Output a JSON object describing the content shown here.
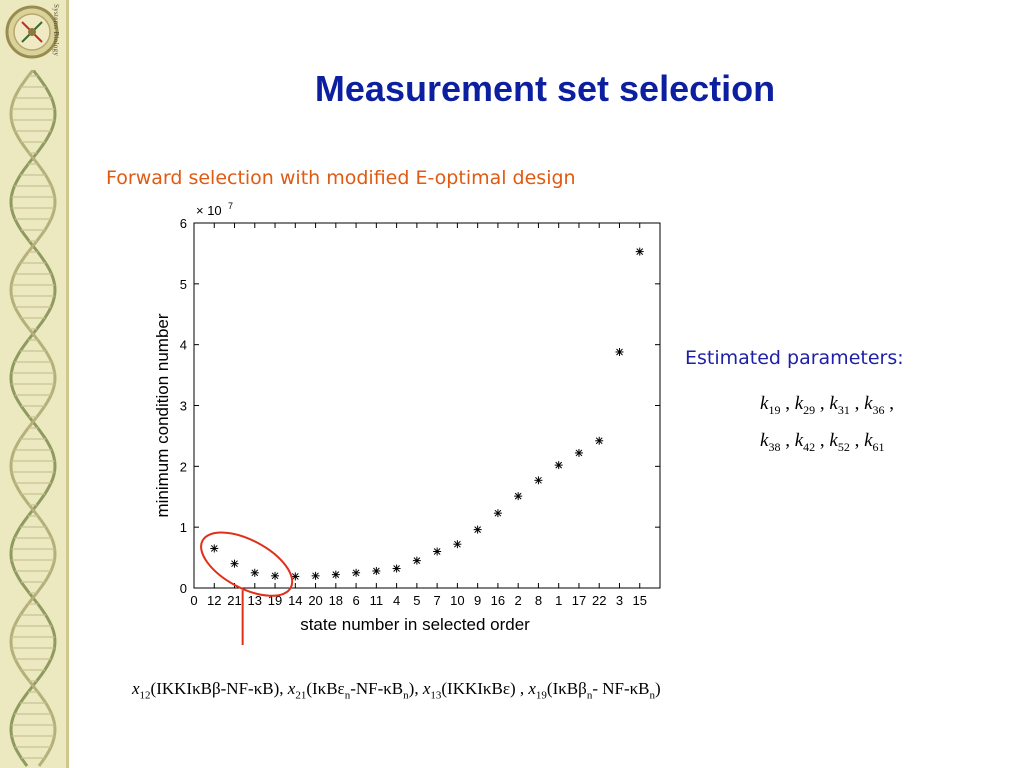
{
  "sidebar": {
    "logo_text": "Systems Biology"
  },
  "slide": {
    "title": "Measurement set selection",
    "subtitle": "Forward selection with modified E-optimal design",
    "params_label": "Estimated parameters:",
    "params": [
      [
        {
          "v": "k",
          "s": "19"
        },
        {
          "v": "k",
          "s": "29"
        },
        {
          "v": "k",
          "s": "31"
        },
        {
          "v": "k",
          "s": "36"
        }
      ],
      [
        {
          "v": "k",
          "s": "38"
        },
        {
          "v": "k",
          "s": "42"
        },
        {
          "v": "k",
          "s": "52"
        },
        {
          "v": "k",
          "s": "61"
        }
      ]
    ],
    "params_line_1_trailing": ",",
    "states_caption": [
      {
        "v": "x",
        "s": "12",
        "t": "(IKKIκBβ-NF-κB), "
      },
      {
        "v": "x",
        "s": "21",
        "t": "(IκBε",
        "s2": "n",
        "t2": "-NF-κB",
        "s3": "n",
        "t3": "), "
      },
      {
        "v": "x",
        "s": "13",
        "t": "(IKKIκBε) , "
      },
      {
        "v": "x",
        "s": "19",
        "t": "(IκBβ",
        "s2": "n",
        "t2": "- NF-κB",
        "s3": "n",
        "t3": ")"
      }
    ]
  },
  "colors": {
    "title": "#0b1fa0",
    "subtitle": "#e05a12",
    "params_label": "#1d1fa8",
    "ellipse": "#e0301a",
    "sidebar_bg": "#ece8bf"
  },
  "chart_data": {
    "type": "scatter",
    "marker": "asterisk",
    "xlabel": "state number in selected order",
    "ylabel": "minimum condition number",
    "y_multiplier": "× 10",
    "y_multiplier_exp": "7",
    "categories": [
      "0",
      "12",
      "21",
      "13",
      "19",
      "14",
      "20",
      "18",
      "6",
      "11",
      "4",
      "5",
      "7",
      "10",
      "9",
      "16",
      "2",
      "8",
      "1",
      "17",
      "22",
      "3",
      "15"
    ],
    "points": [
      {
        "x": 1,
        "y": 0.65
      },
      {
        "x": 2,
        "y": 0.4
      },
      {
        "x": 3,
        "y": 0.25
      },
      {
        "x": 4,
        "y": 0.2
      },
      {
        "x": 5,
        "y": 0.19
      },
      {
        "x": 6,
        "y": 0.2
      },
      {
        "x": 7,
        "y": 0.22
      },
      {
        "x": 8,
        "y": 0.25
      },
      {
        "x": 9,
        "y": 0.28
      },
      {
        "x": 10,
        "y": 0.32
      },
      {
        "x": 11,
        "y": 0.45
      },
      {
        "x": 12,
        "y": 0.6
      },
      {
        "x": 13,
        "y": 0.72
      },
      {
        "x": 14,
        "y": 0.96
      },
      {
        "x": 15,
        "y": 1.23
      },
      {
        "x": 16,
        "y": 1.51
      },
      {
        "x": 17,
        "y": 1.77
      },
      {
        "x": 18,
        "y": 2.02
      },
      {
        "x": 19,
        "y": 2.22
      },
      {
        "x": 20,
        "y": 2.42
      },
      {
        "x": 21,
        "y": 3.88
      },
      {
        "x": 22,
        "y": 5.53
      }
    ],
    "xlim": [
      0,
      23
    ],
    "ylim": [
      0,
      6
    ],
    "yticks": [
      0,
      1,
      2,
      3,
      4,
      5,
      6
    ],
    "grid": false,
    "annotation": "red ellipse around first four points with arrow pointing down"
  }
}
